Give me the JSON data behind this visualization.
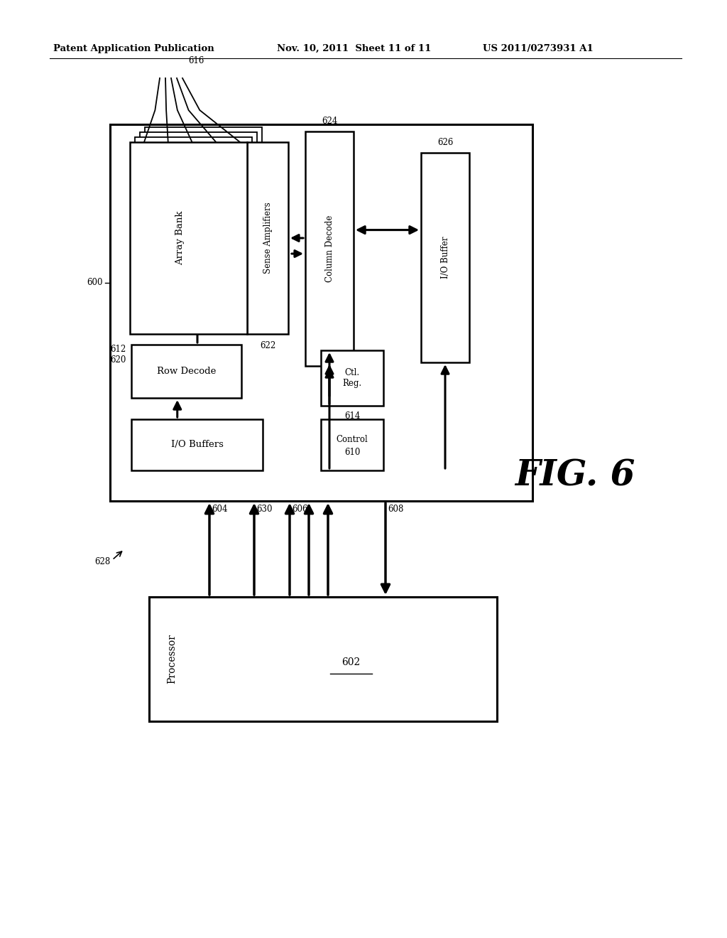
{
  "bg_color": "#ffffff",
  "header_left": "Patent Application Publication",
  "header_mid": "Nov. 10, 2011  Sheet 11 of 11",
  "header_right": "US 2011/0273931 A1",
  "fig_label": "FIG. 6"
}
